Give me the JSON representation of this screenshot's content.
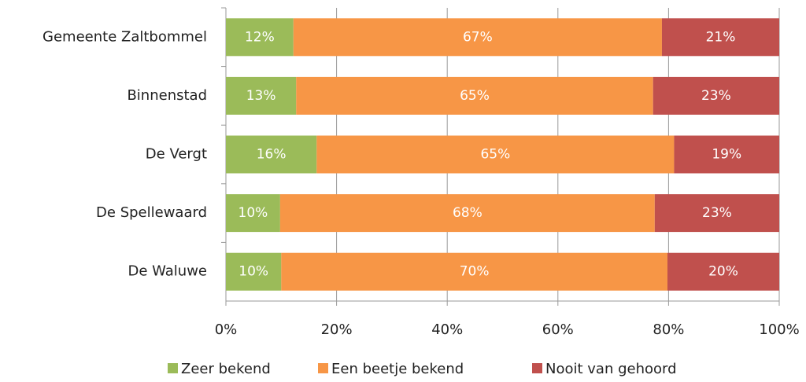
{
  "chart_data": {
    "type": "stacked_barh",
    "categories": [
      "Gemeente Zaltbommel",
      "Binnenstad",
      "De Vergt",
      "De Spellewaard",
      "De Waluwe"
    ],
    "series": [
      {
        "name": "Zeer bekend",
        "color": "#9bbb59",
        "values": [
          12.2,
          12.7,
          16.4,
          9.8,
          10.0
        ],
        "value_labels": [
          "12%",
          "13%",
          "16%",
          "10%",
          "10%"
        ]
      },
      {
        "name": "Een beetje bekend",
        "color": "#f79646",
        "values": [
          66.6,
          64.5,
          64.6,
          67.7,
          69.8
        ],
        "value_labels": [
          "67%",
          "65%",
          "65%",
          "68%",
          "70%"
        ]
      },
      {
        "name": "Nooit van gehoord",
        "color": "#c0504d",
        "values": [
          21.2,
          22.8,
          19.0,
          22.5,
          20.2
        ],
        "value_labels": [
          "21%",
          "23%",
          "19%",
          "23%",
          "20%"
        ]
      }
    ],
    "xlim": [
      0,
      100
    ],
    "xticks": [
      {
        "value": 0,
        "label": "0%"
      },
      {
        "value": 20,
        "label": "20%"
      },
      {
        "value": 40,
        "label": "40%"
      },
      {
        "value": 60,
        "label": "60%"
      },
      {
        "value": 80,
        "label": "80%"
      },
      {
        "value": 100,
        "label": "100%"
      }
    ],
    "grid": true,
    "legend": "bottom"
  }
}
